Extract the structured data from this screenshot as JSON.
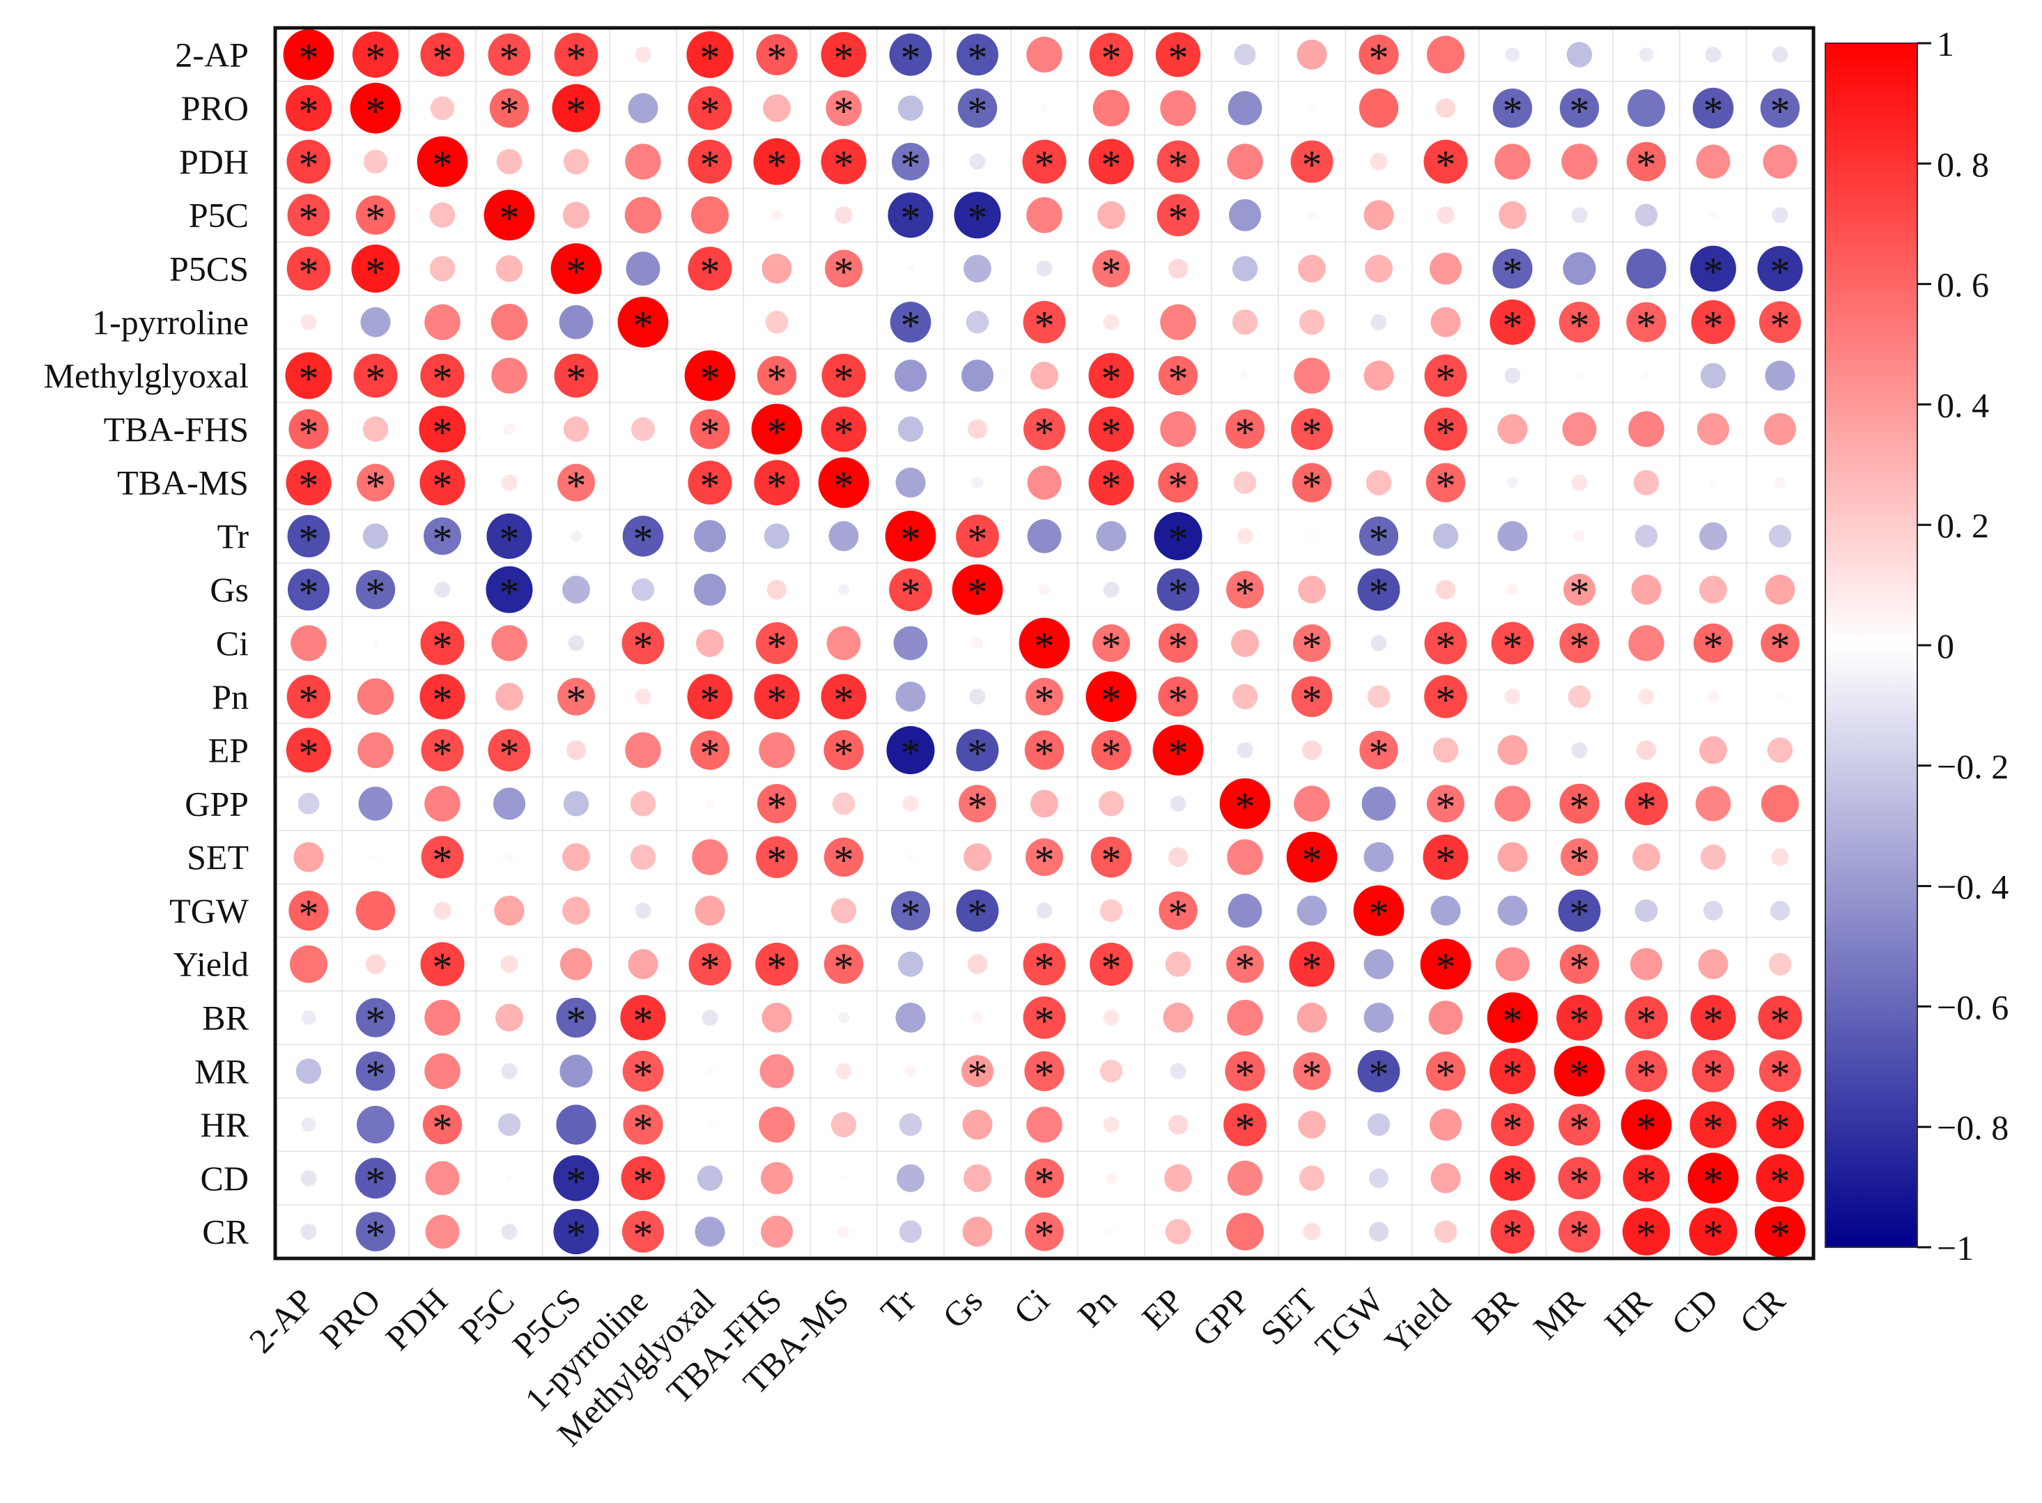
{
  "chart_data": {
    "type": "heatmap",
    "subtype": "correlation-circle-matrix",
    "title": "",
    "variables": [
      "2-AP",
      "PRO",
      "PDH",
      "P5C",
      "P5CS",
      "1-pyrroline",
      "Methylglyoxal",
      "TBA-FHS",
      "TBA-MS",
      "Tr",
      "Gs",
      "Ci",
      "Pn",
      "EP",
      "GPP",
      "SET",
      "TGW",
      "Yield",
      "BR",
      "MR",
      "HR",
      "CD",
      "CR"
    ],
    "matrix": [
      [
        1.0,
        0.83,
        0.75,
        0.7,
        0.74,
        0.1,
        0.85,
        0.66,
        0.8,
        -0.7,
        -0.68,
        0.5,
        0.74,
        0.78,
        -0.18,
        0.35,
        0.62,
        0.55,
        -0.08,
        -0.25,
        -0.08,
        -0.1,
        -0.1
      ],
      [
        0.83,
        1.0,
        0.22,
        0.6,
        0.9,
        -0.35,
        0.75,
        0.3,
        0.5,
        -0.25,
        -0.6,
        0.02,
        0.52,
        0.5,
        -0.45,
        0.02,
        0.6,
        0.15,
        -0.6,
        -0.6,
        -0.55,
        -0.65,
        -0.6
      ],
      [
        0.75,
        0.22,
        1.0,
        0.25,
        0.25,
        0.5,
        0.75,
        0.85,
        0.8,
        -0.55,
        -0.1,
        0.75,
        0.8,
        0.7,
        0.5,
        0.7,
        0.12,
        0.75,
        0.5,
        0.5,
        0.6,
        0.45,
        0.45
      ],
      [
        0.7,
        0.6,
        0.25,
        1.0,
        0.28,
        0.52,
        0.55,
        0.05,
        0.12,
        -0.8,
        -0.85,
        0.5,
        0.3,
        0.7,
        -0.4,
        0.03,
        0.35,
        0.12,
        0.3,
        -0.1,
        -0.2,
        -0.02,
        -0.1
      ],
      [
        0.74,
        0.9,
        0.25,
        0.28,
        1.0,
        -0.45,
        0.75,
        0.35,
        0.55,
        -0.02,
        -0.3,
        -0.1,
        0.55,
        0.15,
        -0.25,
        0.3,
        0.3,
        0.4,
        -0.62,
        -0.42,
        -0.62,
        -0.82,
        -0.8
      ],
      [
        0.1,
        -0.35,
        0.5,
        0.52,
        -0.45,
        1.0,
        0.0,
        0.2,
        0.0,
        -0.65,
        -0.2,
        0.7,
        0.1,
        0.5,
        0.25,
        0.25,
        -0.1,
        0.35,
        0.8,
        0.65,
        0.62,
        0.75,
        0.68
      ],
      [
        0.85,
        0.75,
        0.75,
        0.5,
        0.75,
        0.0,
        1.0,
        0.6,
        0.75,
        -0.4,
        -0.4,
        0.3,
        0.8,
        0.6,
        0.03,
        0.5,
        0.35,
        0.7,
        -0.1,
        0.02,
        0.02,
        -0.25,
        -0.35
      ],
      [
        0.62,
        0.25,
        0.85,
        0.05,
        0.25,
        0.22,
        0.62,
        1.0,
        0.8,
        -0.25,
        0.15,
        0.68,
        0.8,
        0.5,
        0.6,
        0.68,
        0.0,
        0.72,
        0.35,
        0.45,
        0.5,
        0.4,
        0.4
      ],
      [
        0.8,
        0.55,
        0.8,
        0.1,
        0.55,
        0.0,
        0.75,
        0.8,
        1.0,
        -0.35,
        -0.05,
        0.45,
        0.8,
        0.62,
        0.2,
        0.6,
        0.25,
        0.6,
        -0.05,
        0.1,
        0.25,
        0.02,
        0.05
      ],
      [
        -0.7,
        -0.25,
        -0.55,
        -0.8,
        -0.05,
        -0.65,
        -0.4,
        -0.25,
        -0.35,
        1.0,
        0.72,
        -0.45,
        -0.35,
        -0.9,
        0.1,
        0.02,
        -0.6,
        -0.25,
        -0.35,
        0.05,
        -0.2,
        -0.3,
        -0.2
      ],
      [
        -0.68,
        -0.6,
        -0.1,
        -0.85,
        -0.3,
        -0.2,
        -0.4,
        0.15,
        -0.05,
        0.72,
        1.0,
        0.05,
        -0.1,
        -0.7,
        0.55,
        0.3,
        -0.7,
        0.15,
        0.05,
        0.4,
        0.35,
        0.3,
        0.35
      ],
      [
        0.5,
        0.02,
        0.75,
        0.5,
        -0.1,
        0.7,
        0.3,
        0.68,
        0.45,
        -0.45,
        0.05,
        1.0,
        0.55,
        0.6,
        0.3,
        0.55,
        -0.1,
        0.7,
        0.7,
        0.62,
        0.5,
        0.6,
        0.58
      ],
      [
        0.74,
        0.52,
        0.8,
        0.3,
        0.55,
        0.1,
        0.8,
        0.8,
        0.8,
        -0.35,
        -0.1,
        0.55,
        1.0,
        0.62,
        0.25,
        0.65,
        0.2,
        0.72,
        0.1,
        0.2,
        0.1,
        0.05,
        0.02
      ],
      [
        0.78,
        0.5,
        0.7,
        0.7,
        0.15,
        0.5,
        0.6,
        0.5,
        0.62,
        -0.9,
        -0.7,
        0.6,
        0.62,
        1.0,
        -0.1,
        0.15,
        0.58,
        0.25,
        0.35,
        -0.1,
        0.15,
        0.3,
        0.25
      ],
      [
        -0.18,
        -0.45,
        0.5,
        -0.4,
        -0.25,
        0.25,
        0.03,
        0.6,
        0.2,
        0.1,
        0.55,
        0.3,
        0.25,
        -0.1,
        1.0,
        0.5,
        -0.45,
        0.55,
        0.5,
        0.62,
        0.72,
        0.48,
        0.55
      ],
      [
        0.35,
        0.02,
        0.7,
        0.03,
        0.3,
        0.25,
        0.5,
        0.68,
        0.6,
        0.02,
        0.3,
        0.55,
        0.65,
        0.15,
        0.5,
        1.0,
        -0.35,
        0.8,
        0.35,
        0.55,
        0.3,
        0.25,
        0.12
      ],
      [
        0.62,
        0.6,
        0.12,
        0.35,
        0.3,
        -0.1,
        0.35,
        0.0,
        0.25,
        -0.6,
        -0.7,
        -0.1,
        0.2,
        0.58,
        -0.45,
        -0.35,
        1.0,
        -0.35,
        -0.35,
        -0.7,
        -0.2,
        -0.15,
        -0.15
      ],
      [
        0.55,
        0.15,
        0.75,
        0.12,
        0.4,
        0.35,
        0.7,
        0.72,
        0.6,
        -0.25,
        0.15,
        0.7,
        0.72,
        0.25,
        0.55,
        0.8,
        -0.35,
        1.0,
        0.45,
        0.6,
        0.4,
        0.35,
        0.2
      ],
      [
        -0.08,
        -0.6,
        0.5,
        0.3,
        -0.62,
        0.8,
        -0.1,
        0.35,
        -0.05,
        -0.35,
        0.05,
        0.7,
        0.1,
        0.35,
        0.5,
        0.35,
        -0.35,
        0.45,
        1.0,
        0.82,
        0.72,
        0.8,
        0.75
      ],
      [
        -0.25,
        -0.6,
        0.5,
        -0.1,
        -0.42,
        0.65,
        0.02,
        0.45,
        0.1,
        0.05,
        0.4,
        0.62,
        0.2,
        -0.1,
        0.62,
        0.55,
        -0.7,
        0.6,
        0.82,
        1.0,
        0.68,
        0.7,
        0.68
      ],
      [
        -0.08,
        -0.55,
        0.6,
        -0.2,
        -0.62,
        0.62,
        0.02,
        0.5,
        0.25,
        -0.2,
        0.35,
        0.5,
        0.1,
        0.15,
        0.72,
        0.3,
        -0.2,
        0.4,
        0.72,
        0.68,
        1.0,
        0.85,
        0.88
      ],
      [
        -0.1,
        -0.65,
        0.45,
        -0.02,
        -0.82,
        0.75,
        -0.25,
        0.4,
        0.02,
        -0.3,
        0.3,
        0.6,
        0.05,
        0.3,
        0.48,
        0.25,
        -0.15,
        0.35,
        0.8,
        0.7,
        0.85,
        1.0,
        0.9
      ],
      [
        -0.1,
        -0.6,
        0.45,
        -0.1,
        -0.8,
        0.68,
        -0.35,
        0.4,
        0.05,
        -0.2,
        0.35,
        0.58,
        0.02,
        0.25,
        0.55,
        0.12,
        -0.15,
        0.2,
        0.75,
        0.68,
        0.88,
        0.9,
        1.0
      ]
    ],
    "significant": [
      [
        1,
        1,
        1,
        1,
        1,
        0,
        1,
        1,
        1,
        1,
        1,
        0,
        1,
        1,
        0,
        0,
        1,
        0,
        0,
        0,
        0,
        0,
        0
      ],
      [
        1,
        1,
        0,
        1,
        1,
        0,
        1,
        0,
        1,
        0,
        1,
        0,
        0,
        0,
        0,
        0,
        0,
        0,
        1,
        1,
        0,
        1,
        1
      ],
      [
        1,
        0,
        1,
        0,
        0,
        0,
        1,
        1,
        1,
        1,
        0,
        1,
        1,
        1,
        0,
        1,
        0,
        1,
        0,
        0,
        1,
        0,
        0
      ],
      [
        1,
        1,
        0,
        1,
        0,
        0,
        0,
        0,
        0,
        1,
        1,
        0,
        0,
        1,
        0,
        0,
        0,
        0,
        0,
        0,
        0,
        0,
        0
      ],
      [
        1,
        1,
        0,
        0,
        1,
        0,
        1,
        0,
        1,
        0,
        0,
        0,
        1,
        0,
        0,
        0,
        0,
        0,
        1,
        0,
        0,
        1,
        1
      ],
      [
        0,
        0,
        0,
        0,
        0,
        1,
        0,
        0,
        0,
        1,
        0,
        1,
        0,
        0,
        0,
        0,
        0,
        0,
        1,
        1,
        1,
        1,
        1
      ],
      [
        1,
        1,
        1,
        0,
        1,
        0,
        1,
        1,
        1,
        0,
        0,
        0,
        1,
        1,
        0,
        0,
        0,
        1,
        0,
        0,
        0,
        0,
        0
      ],
      [
        1,
        0,
        1,
        0,
        0,
        0,
        1,
        1,
        1,
        0,
        0,
        1,
        1,
        0,
        1,
        1,
        0,
        1,
        0,
        0,
        0,
        0,
        0
      ],
      [
        1,
        1,
        1,
        0,
        1,
        0,
        1,
        1,
        1,
        0,
        0,
        0,
        1,
        1,
        0,
        1,
        0,
        1,
        0,
        0,
        0,
        0,
        0
      ],
      [
        1,
        0,
        1,
        1,
        0,
        1,
        0,
        0,
        0,
        1,
        1,
        0,
        0,
        1,
        0,
        0,
        1,
        0,
        0,
        0,
        0,
        0,
        0
      ],
      [
        1,
        1,
        0,
        1,
        0,
        0,
        0,
        0,
        0,
        1,
        1,
        0,
        0,
        1,
        1,
        0,
        1,
        0,
        0,
        1,
        0,
        0,
        0
      ],
      [
        0,
        0,
        1,
        0,
        0,
        1,
        0,
        1,
        0,
        0,
        0,
        1,
        1,
        1,
        0,
        1,
        0,
        1,
        1,
        1,
        0,
        1,
        1
      ],
      [
        1,
        0,
        1,
        0,
        1,
        0,
        1,
        1,
        1,
        0,
        0,
        1,
        1,
        1,
        0,
        1,
        0,
        1,
        0,
        0,
        0,
        0,
        0
      ],
      [
        1,
        0,
        1,
        1,
        0,
        0,
        1,
        0,
        1,
        1,
        1,
        1,
        1,
        1,
        0,
        0,
        1,
        0,
        0,
        0,
        0,
        0,
        0
      ],
      [
        0,
        0,
        0,
        0,
        0,
        0,
        0,
        1,
        0,
        0,
        1,
        0,
        0,
        0,
        1,
        0,
        0,
        1,
        0,
        1,
        1,
        0,
        0
      ],
      [
        0,
        0,
        1,
        0,
        0,
        0,
        0,
        1,
        1,
        0,
        0,
        1,
        1,
        0,
        0,
        1,
        0,
        1,
        0,
        1,
        0,
        0,
        0
      ],
      [
        1,
        0,
        0,
        0,
        0,
        0,
        0,
        0,
        0,
        1,
        1,
        0,
        0,
        1,
        0,
        0,
        1,
        0,
        0,
        1,
        0,
        0,
        0
      ],
      [
        0,
        0,
        1,
        0,
        0,
        0,
        1,
        1,
        1,
        0,
        0,
        1,
        1,
        0,
        1,
        1,
        0,
        1,
        0,
        1,
        0,
        0,
        0
      ],
      [
        0,
        1,
        0,
        0,
        1,
        1,
        0,
        0,
        0,
        0,
        0,
        1,
        0,
        0,
        0,
        0,
        0,
        0,
        1,
        1,
        1,
        1,
        1
      ],
      [
        0,
        1,
        0,
        0,
        0,
        1,
        0,
        0,
        0,
        0,
        1,
        1,
        0,
        0,
        1,
        1,
        1,
        1,
        1,
        1,
        1,
        1,
        1
      ],
      [
        0,
        0,
        1,
        0,
        0,
        1,
        0,
        0,
        0,
        0,
        0,
        0,
        0,
        0,
        1,
        0,
        0,
        0,
        1,
        1,
        1,
        1,
        1
      ],
      [
        0,
        1,
        0,
        0,
        1,
        1,
        0,
        0,
        0,
        0,
        0,
        1,
        0,
        0,
        0,
        0,
        0,
        0,
        1,
        1,
        1,
        1,
        1
      ],
      [
        0,
        1,
        0,
        0,
        1,
        1,
        0,
        0,
        0,
        0,
        0,
        1,
        0,
        0,
        0,
        0,
        0,
        0,
        1,
        1,
        1,
        1,
        1
      ]
    ],
    "significance_marker": "*",
    "colorbar": {
      "range": [
        -1,
        1
      ],
      "tick_values": [
        1,
        0.8,
        0.6,
        0.4,
        0.2,
        0,
        -0.2,
        -0.4,
        -0.6,
        -0.8,
        -1
      ],
      "tick_labels": [
        "1",
        "0. 8",
        "0. 6",
        "0. 4",
        "0. 2",
        "0",
        "−0. 2",
        "−0. 4",
        "−0. 6",
        "−0. 8",
        "−1"
      ],
      "colors": {
        "negative": "#00008B",
        "zero": "#FFFFFF",
        "positive": "#FF0000"
      }
    },
    "xlabel": "",
    "ylabel": "",
    "grid": true
  }
}
